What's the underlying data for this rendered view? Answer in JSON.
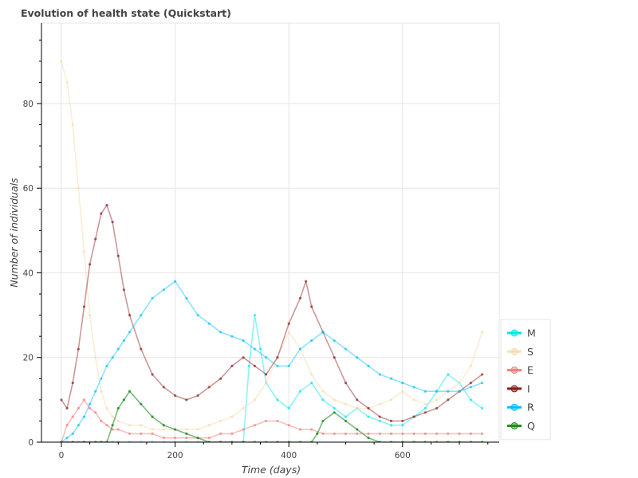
{
  "chart_data": {
    "type": "line",
    "title": "Evolution of health state (Quickstart)",
    "xlabel": "Time (days)",
    "ylabel": "Number of individuals",
    "xlim": [
      -35,
      770
    ],
    "ylim": [
      0,
      99
    ],
    "xticks": [
      0,
      200,
      400,
      600
    ],
    "yticks": [
      0,
      20,
      40,
      60,
      80
    ],
    "grid": true,
    "legend_position": "bottom-right",
    "series": [
      {
        "name": "M",
        "color": "#00e5ee",
        "opacity": 0.45,
        "x": [
          0,
          10,
          20,
          30,
          40,
          50,
          60,
          70,
          80,
          90,
          100,
          120,
          140,
          160,
          180,
          200,
          220,
          240,
          260,
          280,
          300,
          320,
          330,
          340,
          350,
          360,
          380,
          400,
          420,
          440,
          460,
          480,
          500,
          520,
          540,
          560,
          580,
          600,
          620,
          640,
          660,
          680,
          700,
          720,
          740
        ],
        "y": [
          0,
          0,
          0,
          0,
          0,
          0,
          0,
          0,
          0,
          0,
          0,
          0,
          0,
          0,
          0,
          0,
          0,
          0,
          0,
          0,
          0,
          0,
          18,
          30,
          22,
          14,
          10,
          8,
          12,
          14,
          10,
          8,
          6,
          8,
          6,
          5,
          4,
          4,
          6,
          8,
          12,
          16,
          14,
          10,
          8
        ]
      },
      {
        "name": "S",
        "color": "#f5deb3",
        "opacity": 0.55,
        "x": [
          0,
          10,
          20,
          30,
          40,
          50,
          60,
          70,
          80,
          90,
          100,
          120,
          140,
          160,
          180,
          200,
          220,
          240,
          260,
          280,
          300,
          320,
          340,
          360,
          380,
          400,
          420,
          440,
          460,
          480,
          500,
          520,
          540,
          560,
          580,
          600,
          620,
          640,
          660,
          680,
          700,
          720,
          740
        ],
        "y": [
          90,
          85,
          75,
          60,
          45,
          30,
          20,
          12,
          8,
          6,
          5,
          4,
          4,
          3,
          3,
          3,
          3,
          3,
          4,
          5,
          6,
          8,
          10,
          14,
          20,
          26,
          22,
          16,
          12,
          10,
          9,
          8,
          8,
          9,
          10,
          12,
          10,
          9,
          10,
          12,
          14,
          18,
          26
        ]
      },
      {
        "name": "E",
        "color": "#f08080",
        "opacity": 0.5,
        "x": [
          0,
          10,
          20,
          30,
          40,
          50,
          60,
          70,
          80,
          90,
          100,
          120,
          140,
          160,
          180,
          200,
          220,
          240,
          260,
          280,
          300,
          320,
          340,
          360,
          380,
          400,
          420,
          440,
          460,
          480,
          500,
          520,
          540,
          560,
          580,
          600,
          620,
          640,
          660,
          680,
          700,
          720,
          740
        ],
        "y": [
          0,
          4,
          6,
          8,
          10,
          8,
          7,
          5,
          4,
          3,
          3,
          2,
          2,
          2,
          1,
          1,
          1,
          1,
          1,
          2,
          2,
          3,
          4,
          5,
          5,
          4,
          3,
          3,
          2,
          2,
          2,
          2,
          2,
          2,
          2,
          2,
          2,
          2,
          2,
          2,
          2,
          2,
          2
        ]
      },
      {
        "name": "I",
        "color": "#8b1a1a",
        "opacity": 0.45,
        "x": [
          0,
          10,
          20,
          30,
          40,
          50,
          60,
          70,
          80,
          90,
          100,
          110,
          120,
          140,
          160,
          180,
          200,
          220,
          240,
          260,
          280,
          300,
          320,
          340,
          360,
          380,
          400,
          420,
          430,
          440,
          460,
          480,
          500,
          520,
          540,
          560,
          580,
          600,
          620,
          640,
          660,
          680,
          700,
          720,
          740
        ],
        "y": [
          10,
          8,
          14,
          22,
          32,
          42,
          48,
          54,
          56,
          52,
          44,
          36,
          30,
          22,
          16,
          13,
          11,
          10,
          11,
          13,
          15,
          18,
          20,
          18,
          16,
          20,
          28,
          34,
          38,
          32,
          26,
          20,
          14,
          10,
          8,
          6,
          5,
          5,
          6,
          7,
          8,
          10,
          12,
          14,
          16
        ]
      },
      {
        "name": "R",
        "color": "#00bfff",
        "opacity": 0.45,
        "x": [
          0,
          10,
          20,
          30,
          40,
          50,
          60,
          70,
          80,
          90,
          100,
          110,
          120,
          140,
          160,
          180,
          200,
          220,
          240,
          260,
          280,
          300,
          320,
          340,
          360,
          380,
          400,
          420,
          440,
          460,
          480,
          500,
          520,
          540,
          560,
          580,
          600,
          620,
          640,
          660,
          680,
          700,
          720,
          740
        ],
        "y": [
          0,
          1,
          2,
          4,
          6,
          9,
          12,
          15,
          18,
          20,
          22,
          24,
          26,
          30,
          34,
          36,
          38,
          34,
          30,
          28,
          26,
          25,
          24,
          22,
          20,
          18,
          18,
          22,
          24,
          26,
          24,
          22,
          20,
          18,
          16,
          15,
          14,
          13,
          12,
          12,
          12,
          12,
          13,
          14
        ]
      },
      {
        "name": "Q",
        "color": "#228b22",
        "opacity": 0.6,
        "x": [
          0,
          20,
          40,
          60,
          70,
          80,
          90,
          100,
          110,
          120,
          140,
          160,
          180,
          200,
          220,
          240,
          260,
          280,
          300,
          320,
          340,
          360,
          380,
          400,
          420,
          440,
          450,
          460,
          480,
          500,
          520,
          540,
          560,
          580,
          600,
          620,
          640,
          660,
          680,
          700,
          720,
          740
        ],
        "y": [
          0,
          0,
          0,
          0,
          0,
          0,
          4,
          8,
          10,
          12,
          9,
          6,
          4,
          3,
          2,
          1,
          0,
          0,
          0,
          0,
          0,
          0,
          0,
          0,
          0,
          0,
          2,
          5,
          7,
          5,
          3,
          1,
          0,
          0,
          0,
          0,
          0,
          0,
          0,
          0,
          0,
          0
        ]
      }
    ]
  }
}
